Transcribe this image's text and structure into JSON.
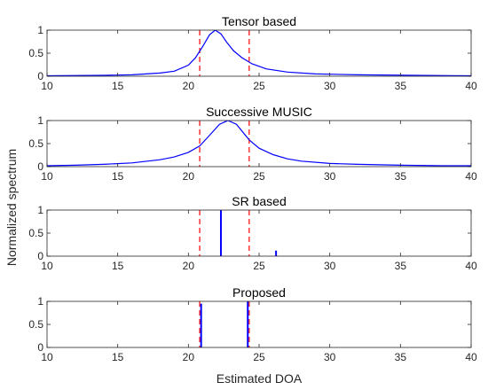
{
  "figure": {
    "xlabel": "Estimated DOA",
    "ylabel": "Normalized spectrum"
  },
  "colors": {
    "spectrum": "#0000ff",
    "true_doa": "#ff0000",
    "axes": "#262626"
  },
  "chart_data": [
    {
      "type": "line",
      "title": "Tensor based",
      "xlim": [
        10,
        40
      ],
      "ylim": [
        0,
        1
      ],
      "xticks": [
        10,
        15,
        20,
        25,
        30,
        35,
        40
      ],
      "yticks": [
        0,
        0.5,
        1
      ],
      "true_doas": [
        20.8,
        24.3
      ],
      "series": [
        {
          "kind": "line",
          "x": [
            10,
            14,
            16,
            18,
            19,
            20,
            20.5,
            21,
            21.5,
            21.9,
            22.3,
            22.7,
            23.2,
            23.8,
            24.5,
            25.5,
            27,
            29,
            32,
            36,
            40
          ],
          "y": [
            0.01,
            0.02,
            0.03,
            0.07,
            0.11,
            0.24,
            0.4,
            0.64,
            0.9,
            1.0,
            0.92,
            0.74,
            0.55,
            0.4,
            0.27,
            0.16,
            0.09,
            0.05,
            0.03,
            0.02,
            0.01
          ]
        }
      ]
    },
    {
      "type": "line",
      "title": "Successive MUSIC",
      "xlim": [
        10,
        40
      ],
      "ylim": [
        0,
        1
      ],
      "xticks": [
        10,
        15,
        20,
        25,
        30,
        35,
        40
      ],
      "yticks": [
        0,
        0.5,
        1
      ],
      "true_doas": [
        20.8,
        24.3
      ],
      "series": [
        {
          "kind": "line",
          "x": [
            10,
            12,
            14,
            16,
            18,
            19,
            20,
            20.8,
            21.5,
            22.2,
            22.8,
            23.4,
            24.3,
            25,
            26,
            27,
            28,
            30,
            32,
            35,
            38,
            40
          ],
          "y": [
            0.02,
            0.03,
            0.05,
            0.08,
            0.15,
            0.21,
            0.31,
            0.45,
            0.68,
            0.92,
            1.0,
            0.92,
            0.58,
            0.4,
            0.26,
            0.17,
            0.12,
            0.07,
            0.05,
            0.03,
            0.02,
            0.02
          ]
        }
      ]
    },
    {
      "type": "line",
      "title": "SR based",
      "xlim": [
        10,
        40
      ],
      "ylim": [
        0,
        1
      ],
      "xticks": [
        10,
        15,
        20,
        25,
        30,
        35,
        40
      ],
      "yticks": [
        0,
        0.5,
        1
      ],
      "true_doas": [
        20.8,
        24.3
      ],
      "series": [
        {
          "kind": "stem",
          "x": [
            22.3,
            26.2
          ],
          "y": [
            1.0,
            0.12
          ]
        }
      ]
    },
    {
      "type": "line",
      "title": "Proposed",
      "xlim": [
        10,
        40
      ],
      "ylim": [
        0,
        1
      ],
      "xticks": [
        10,
        15,
        20,
        25,
        30,
        35,
        40
      ],
      "yticks": [
        0,
        0.5,
        1
      ],
      "true_doas": [
        20.8,
        24.3
      ],
      "series": [
        {
          "kind": "stem",
          "x": [
            20.9,
            24.2
          ],
          "y": [
            0.95,
            1.0
          ]
        }
      ]
    }
  ]
}
